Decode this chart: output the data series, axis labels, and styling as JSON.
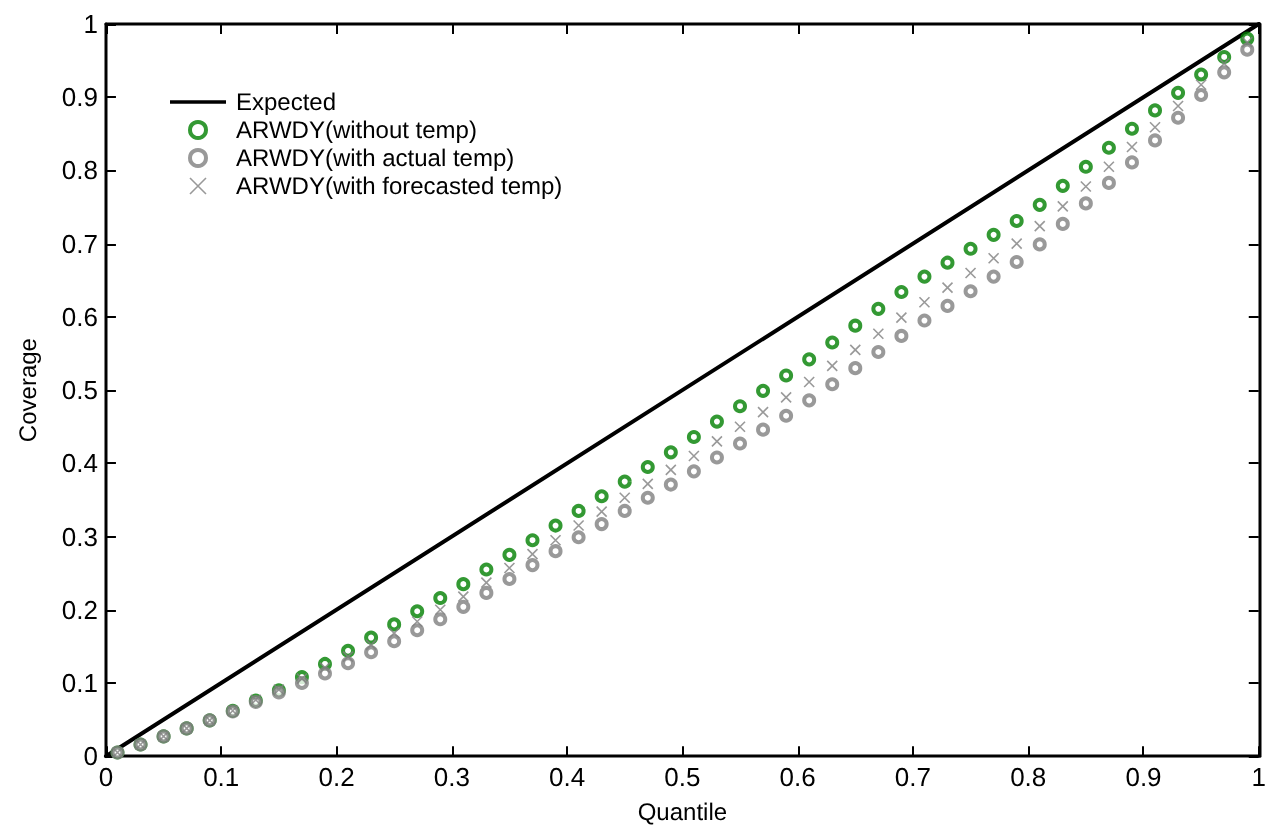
{
  "chart_data": {
    "type": "scatter",
    "xlabel": "Quantile",
    "ylabel": "Coverage",
    "xlim": [
      0,
      1
    ],
    "ylim": [
      0,
      1
    ],
    "xticks": [
      0,
      0.1,
      0.2,
      0.3,
      0.4,
      0.5,
      0.6,
      0.7,
      0.8,
      0.9,
      1
    ],
    "yticks": [
      0,
      0.1,
      0.2,
      0.3,
      0.4,
      0.5,
      0.6,
      0.7,
      0.8,
      0.9,
      1
    ],
    "grid": false,
    "legend": "top left",
    "x": [
      0.01,
      0.03,
      0.05,
      0.07,
      0.09,
      0.11,
      0.13,
      0.15,
      0.17,
      0.19,
      0.21,
      0.23,
      0.25,
      0.27,
      0.29,
      0.31,
      0.33,
      0.35,
      0.37,
      0.39,
      0.41,
      0.43,
      0.45,
      0.47,
      0.49,
      0.51,
      0.53,
      0.55,
      0.57,
      0.59,
      0.61,
      0.63,
      0.65,
      0.67,
      0.69,
      0.71,
      0.73,
      0.75,
      0.77,
      0.79,
      0.81,
      0.83,
      0.85,
      0.87,
      0.89,
      0.91,
      0.93,
      0.95,
      0.97,
      0.99
    ],
    "series": [
      {
        "name": "Expected",
        "type": "line",
        "color": "#000000",
        "marker": "none",
        "line_style": "solid",
        "x": [
          0,
          1
        ],
        "values": [
          0,
          1
        ]
      },
      {
        "name": "ARWDY(without temp)",
        "color": "#008000",
        "marker": "circle",
        "values": [
          0.005,
          0.016,
          0.027,
          0.038,
          0.049,
          0.062,
          0.076,
          0.09,
          0.108,
          0.126,
          0.144,
          0.162,
          0.18,
          0.198,
          0.216,
          0.235,
          0.255,
          0.275,
          0.295,
          0.315,
          0.335,
          0.355,
          0.375,
          0.395,
          0.415,
          0.436,
          0.457,
          0.478,
          0.499,
          0.52,
          0.542,
          0.565,
          0.588,
          0.611,
          0.634,
          0.655,
          0.674,
          0.693,
          0.712,
          0.731,
          0.753,
          0.779,
          0.805,
          0.831,
          0.857,
          0.882,
          0.906,
          0.931,
          0.955,
          0.98
        ]
      },
      {
        "name": "ARWDY(with actual temp)",
        "color": "#808080",
        "marker": "circle",
        "values": [
          0.005,
          0.016,
          0.027,
          0.038,
          0.049,
          0.061,
          0.074,
          0.087,
          0.1,
          0.113,
          0.127,
          0.142,
          0.157,
          0.172,
          0.187,
          0.204,
          0.223,
          0.242,
          0.261,
          0.28,
          0.299,
          0.317,
          0.335,
          0.353,
          0.371,
          0.389,
          0.408,
          0.427,
          0.446,
          0.465,
          0.486,
          0.508,
          0.53,
          0.552,
          0.574,
          0.595,
          0.615,
          0.635,
          0.655,
          0.675,
          0.699,
          0.727,
          0.755,
          0.783,
          0.811,
          0.841,
          0.872,
          0.903,
          0.934,
          0.965
        ]
      },
      {
        "name": "ARWDY(with forecasted temp)",
        "color": "#808080",
        "marker": "cross",
        "values": [
          0.005,
          0.016,
          0.027,
          0.038,
          0.049,
          0.062,
          0.077,
          0.091,
          0.106,
          0.121,
          0.136,
          0.152,
          0.168,
          0.184,
          0.2,
          0.218,
          0.237,
          0.257,
          0.276,
          0.295,
          0.315,
          0.334,
          0.353,
          0.372,
          0.391,
          0.41,
          0.43,
          0.45,
          0.47,
          0.49,
          0.511,
          0.533,
          0.555,
          0.577,
          0.599,
          0.62,
          0.64,
          0.66,
          0.68,
          0.7,
          0.724,
          0.751,
          0.778,
          0.805,
          0.832,
          0.859,
          0.888,
          0.917,
          0.946,
          0.975
        ]
      }
    ]
  }
}
